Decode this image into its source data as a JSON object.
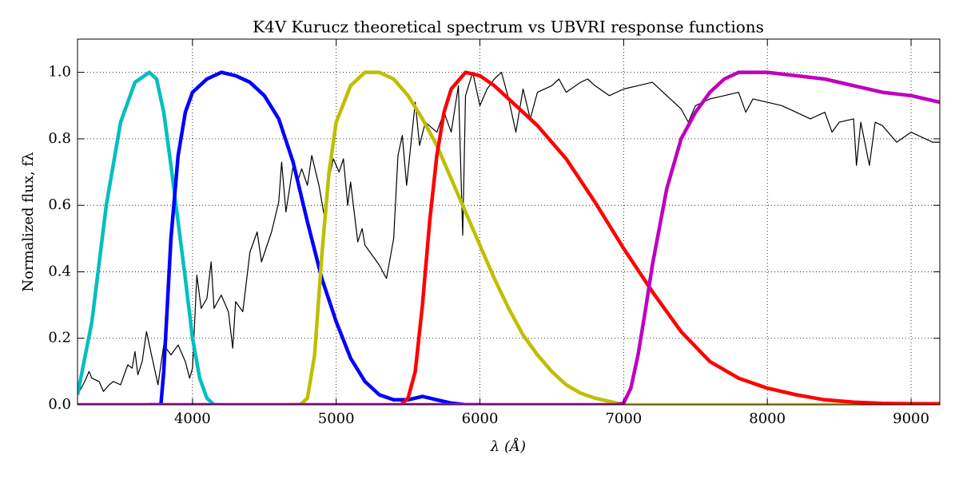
{
  "chart_data": {
    "type": "line",
    "title": "K4V Kurucz theoretical spectrum vs UBVRI response functions",
    "x_label": "λ (Å)",
    "y_label": "Normalized flux,  fλ",
    "xlim": [
      3200,
      9200
    ],
    "ylim": [
      0,
      1.1
    ],
    "xticks": [
      4000,
      5000,
      6000,
      7000,
      8000,
      9000
    ],
    "yticks": [
      {
        "value": 0,
        "label": "0.0"
      },
      {
        "value": 0.2,
        "label": "0.2"
      },
      {
        "value": 0.4,
        "label": "0.4"
      },
      {
        "value": 0.6,
        "label": "0.6"
      },
      {
        "value": 0.8,
        "label": "0.8"
      },
      {
        "value": 1,
        "label": "1.0"
      }
    ],
    "grid": true,
    "series": [
      {
        "color": "#000000",
        "x": [
          3200,
          3250,
          3280,
          3300,
          3350,
          3380,
          3420,
          3450,
          3500,
          3550,
          3580,
          3600,
          3620,
          3650,
          3680,
          3720,
          3760,
          3800,
          3850,
          3900,
          3950,
          3980,
          4000,
          4030,
          4060,
          4100,
          4130,
          4150,
          4200,
          4250,
          4280,
          4300,
          4350,
          4400,
          4450,
          4480,
          4550,
          4600,
          4620,
          4650,
          4700,
          4730,
          4760,
          4800,
          4830,
          4880,
          4920,
          4950,
          4980,
          5020,
          5050,
          5080,
          5100,
          5150,
          5180,
          5200,
          5250,
          5300,
          5350,
          5400,
          5430,
          5460,
          5490,
          5550,
          5580,
          5620,
          5700,
          5750,
          5800,
          5850,
          5880,
          5900,
          5950,
          6000,
          6050,
          6100,
          6150,
          6200,
          6250,
          6300,
          6350,
          6400,
          6500,
          6550,
          6600,
          6700,
          6750,
          6800,
          6900,
          7000,
          7100,
          7200,
          7300,
          7400,
          7450,
          7500,
          7600,
          7700,
          7800,
          7850,
          7900,
          8000,
          8100,
          8200,
          8300,
          8400,
          8450,
          8500,
          8600,
          8620,
          8650,
          8710,
          8750,
          8800,
          8900,
          9000,
          9100,
          9150,
          9200
        ],
        "values": [
          0.03,
          0.07,
          0.1,
          0.08,
          0.07,
          0.04,
          0.06,
          0.07,
          0.06,
          0.12,
          0.11,
          0.16,
          0.09,
          0.13,
          0.22,
          0.14,
          0.06,
          0.18,
          0.15,
          0.18,
          0.13,
          0.08,
          0.11,
          0.39,
          0.29,
          0.32,
          0.43,
          0.29,
          0.33,
          0.28,
          0.17,
          0.31,
          0.28,
          0.46,
          0.52,
          0.43,
          0.52,
          0.61,
          0.73,
          0.58,
          0.72,
          0.67,
          0.71,
          0.66,
          0.75,
          0.66,
          0.56,
          0.68,
          0.74,
          0.7,
          0.74,
          0.6,
          0.67,
          0.49,
          0.53,
          0.48,
          0.45,
          0.42,
          0.38,
          0.5,
          0.75,
          0.81,
          0.66,
          0.91,
          0.78,
          0.85,
          0.82,
          0.88,
          0.82,
          0.96,
          0.51,
          0.93,
          1.0,
          0.9,
          0.95,
          0.98,
          1.0,
          0.92,
          0.82,
          0.95,
          0.86,
          0.94,
          0.96,
          0.98,
          0.94,
          0.97,
          0.98,
          0.96,
          0.93,
          0.95,
          0.96,
          0.97,
          0.93,
          0.89,
          0.85,
          0.9,
          0.92,
          0.93,
          0.94,
          0.88,
          0.92,
          0.91,
          0.9,
          0.88,
          0.86,
          0.88,
          0.82,
          0.85,
          0.86,
          0.72,
          0.85,
          0.72,
          0.85,
          0.84,
          0.79,
          0.82,
          0.8,
          0.79,
          0.79
        ]
      },
      {
        "color": "#00bfbf",
        "x": [
          3200,
          3300,
          3400,
          3500,
          3600,
          3700,
          3750,
          3800,
          3850,
          3900,
          3950,
          4000,
          4050,
          4100,
          4150,
          4200
        ],
        "values": [
          0.03,
          0.25,
          0.6,
          0.85,
          0.97,
          1.0,
          0.98,
          0.88,
          0.72,
          0.55,
          0.38,
          0.2,
          0.08,
          0.02,
          0.0,
          0.0
        ]
      },
      {
        "color": "#0000ff",
        "x": [
          3700,
          3780,
          3800,
          3850,
          3900,
          3950,
          4000,
          4100,
          4200,
          4300,
          4400,
          4500,
          4600,
          4700,
          4800,
          4900,
          5000,
          5100,
          5200,
          5300,
          5400,
          5500,
          5600,
          5700,
          5800,
          5900,
          6000
        ],
        "values": [
          0.0,
          0.0,
          0.1,
          0.5,
          0.75,
          0.88,
          0.94,
          0.98,
          1.0,
          0.99,
          0.97,
          0.93,
          0.86,
          0.73,
          0.55,
          0.38,
          0.25,
          0.14,
          0.07,
          0.03,
          0.015,
          0.015,
          0.025,
          0.015,
          0.005,
          0.0,
          0.0
        ]
      },
      {
        "color": "#bfbf00",
        "x": [
          4700,
          4750,
          4800,
          4850,
          4900,
          4950,
          5000,
          5100,
          5200,
          5300,
          5400,
          5500,
          5600,
          5700,
          5800,
          5900,
          6000,
          6100,
          6200,
          6300,
          6400,
          6500,
          6600,
          6700,
          6800,
          6900,
          7000,
          9200
        ],
        "values": [
          0.0,
          0.0,
          0.02,
          0.15,
          0.45,
          0.7,
          0.85,
          0.96,
          1.0,
          1.0,
          0.98,
          0.93,
          0.86,
          0.78,
          0.68,
          0.58,
          0.48,
          0.38,
          0.29,
          0.21,
          0.15,
          0.1,
          0.06,
          0.035,
          0.02,
          0.01,
          0.0,
          0.0
        ]
      },
      {
        "color": "#ff0000",
        "x": [
          5400,
          5450,
          5500,
          5550,
          5600,
          5650,
          5700,
          5750,
          5800,
          5900,
          6000,
          6100,
          6200,
          6400,
          6600,
          6800,
          7000,
          7200,
          7400,
          7600,
          7800,
          8000,
          8200,
          8400,
          8600,
          8800,
          9000,
          9200
        ],
        "values": [
          0.0,
          0.0,
          0.02,
          0.1,
          0.3,
          0.55,
          0.75,
          0.88,
          0.95,
          1.0,
          0.99,
          0.96,
          0.92,
          0.84,
          0.74,
          0.61,
          0.47,
          0.34,
          0.22,
          0.13,
          0.08,
          0.05,
          0.03,
          0.015,
          0.008,
          0.004,
          0.003,
          0.003
        ]
      },
      {
        "color": "#bf00bf",
        "x": [
          3200,
          6950,
          7000,
          7050,
          7100,
          7150,
          7200,
          7300,
          7400,
          7500,
          7600,
          7700,
          7800,
          8000,
          8200,
          8400,
          8600,
          8800,
          9000,
          9200
        ],
        "values": [
          0.0,
          0.0,
          0.005,
          0.05,
          0.15,
          0.28,
          0.42,
          0.65,
          0.8,
          0.88,
          0.94,
          0.98,
          1.0,
          1.0,
          0.99,
          0.98,
          0.96,
          0.94,
          0.93,
          0.91
        ]
      }
    ]
  }
}
